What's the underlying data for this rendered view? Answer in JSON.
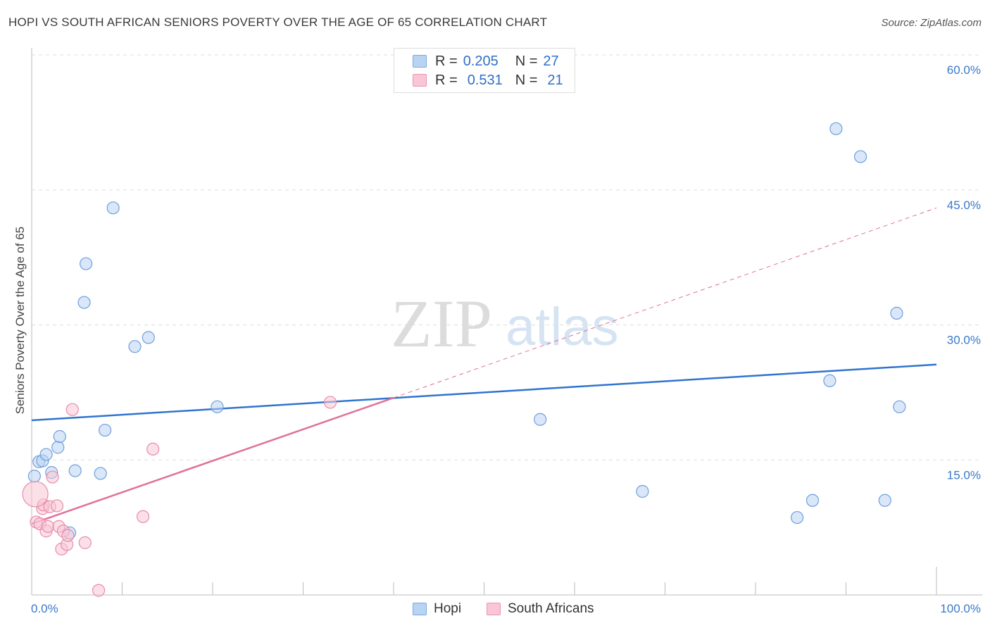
{
  "title": "HOPI VS SOUTH AFRICAN SENIORS POVERTY OVER THE AGE OF 65 CORRELATION CHART",
  "source": "Source: ZipAtlas.com",
  "watermark": {
    "zip": "ZIP",
    "atlas": "atlas"
  },
  "legend": {
    "r_label": "R =",
    "n_label": "N =",
    "rows": [
      {
        "name": "Hopi",
        "r": "0.205",
        "n": "27",
        "fill": "#b9d3f3",
        "stroke": "#7aa7e0"
      },
      {
        "name": "South Africans",
        "r": "0.531",
        "n": "21",
        "fill": "#f8c6d6",
        "stroke": "#ec93b1"
      }
    ]
  },
  "colors": {
    "hopi_line": "#2f74cf",
    "sa_line": "#e0709a",
    "tick_text": "#3a78c9",
    "grid": "#dddddd"
  },
  "chart_data": {
    "type": "scatter",
    "xlabel": "",
    "ylabel": "Seniors Poverty Over the Age of 65",
    "xlim": [
      0,
      100
    ],
    "ylim": [
      0,
      60
    ],
    "x_tick_labels": [
      "0.0%",
      "100.0%"
    ],
    "y_ticks": [
      15,
      30,
      45,
      60
    ],
    "y_tick_labels": [
      "15.0%",
      "30.0%",
      "45.0%",
      "60.0%"
    ],
    "series": [
      {
        "name": "Hopi",
        "points": [
          [
            0.3,
            13.2
          ],
          [
            0.8,
            14.8
          ],
          [
            1.2,
            14.9
          ],
          [
            1.6,
            15.6
          ],
          [
            2.2,
            13.6
          ],
          [
            2.9,
            16.4
          ],
          [
            3.1,
            17.6
          ],
          [
            4.2,
            6.9
          ],
          [
            4.8,
            13.8
          ],
          [
            5.8,
            32.5
          ],
          [
            6.0,
            36.8
          ],
          [
            7.6,
            13.5
          ],
          [
            8.1,
            18.3
          ],
          [
            9.0,
            43.0
          ],
          [
            11.4,
            27.6
          ],
          [
            12.9,
            28.6
          ],
          [
            20.5,
            20.9
          ],
          [
            56.2,
            19.5
          ],
          [
            67.5,
            11.5
          ],
          [
            84.6,
            8.6
          ],
          [
            86.3,
            10.5
          ],
          [
            88.2,
            23.8
          ],
          [
            88.9,
            51.8
          ],
          [
            91.6,
            48.7
          ],
          [
            94.3,
            10.5
          ],
          [
            95.6,
            31.3
          ],
          [
            95.9,
            20.9
          ]
        ],
        "trend": {
          "x": [
            0,
            100
          ],
          "y": [
            19.4,
            25.6
          ]
        }
      },
      {
        "name": "South Africans",
        "points": [
          [
            0.5,
            8.1
          ],
          [
            0.9,
            7.9
          ],
          [
            1.2,
            9.6
          ],
          [
            1.3,
            10.0
          ],
          [
            1.6,
            7.1
          ],
          [
            1.8,
            7.6
          ],
          [
            2.0,
            9.8
          ],
          [
            2.3,
            13.1
          ],
          [
            2.8,
            9.9
          ],
          [
            3.0,
            7.6
          ],
          [
            3.3,
            5.1
          ],
          [
            3.5,
            7.1
          ],
          [
            3.9,
            5.6
          ],
          [
            4.0,
            6.6
          ],
          [
            4.5,
            20.6
          ],
          [
            5.9,
            5.8
          ],
          [
            7.4,
            0.5
          ],
          [
            12.3,
            8.7
          ],
          [
            13.4,
            16.2
          ],
          [
            33.0,
            21.4
          ],
          [
            0.4,
            11.2
          ]
        ],
        "trend_solid": {
          "x": [
            0,
            40
          ],
          "y": [
            7.9,
            21.9
          ]
        },
        "trend_dashed": {
          "x": [
            40,
            100
          ],
          "y": [
            21.9,
            43.0
          ]
        }
      }
    ]
  }
}
